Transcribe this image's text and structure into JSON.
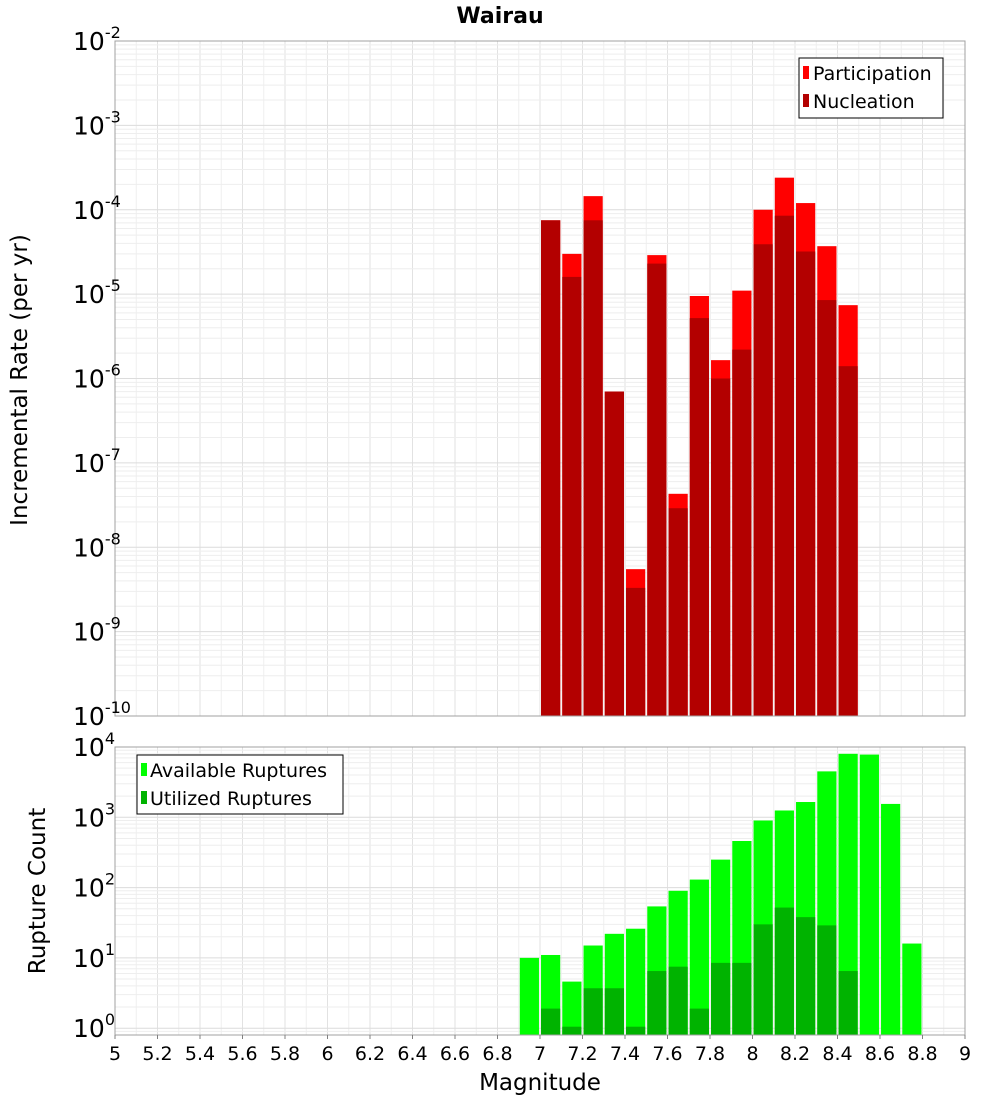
{
  "title": "Wairau",
  "chart_data": [
    {
      "type": "bar",
      "scale": "log",
      "ylabel": "Incremental Rate (per yr)",
      "ylim": [
        1e-10,
        0.01
      ],
      "y_ticks": [
        {
          "base": "10",
          "exp": "-10",
          "value": 1e-10
        },
        {
          "base": "10",
          "exp": "-9",
          "value": 1e-09
        },
        {
          "base": "10",
          "exp": "-8",
          "value": 1e-08
        },
        {
          "base": "10",
          "exp": "-7",
          "value": 1e-07
        },
        {
          "base": "10",
          "exp": "-6",
          "value": 1e-06
        },
        {
          "base": "10",
          "exp": "-5",
          "value": 1e-05
        },
        {
          "base": "10",
          "exp": "-4",
          "value": 0.0001
        },
        {
          "base": "10",
          "exp": "-3",
          "value": 0.001
        },
        {
          "base": "10",
          "exp": "-2",
          "value": 0.01
        }
      ],
      "grid": true,
      "legend_position": "top-right",
      "x": [
        7.05,
        7.15,
        7.25,
        7.35,
        7.45,
        7.55,
        7.65,
        7.75,
        7.85,
        7.95,
        8.05,
        8.15,
        8.25,
        8.35,
        8.45
      ],
      "series": [
        {
          "name": "Participation",
          "color": "#ff0000",
          "values": [
            7.5e-05,
            3e-05,
            0.000145,
            7e-07,
            5.5e-09,
            2.9e-05,
            4.3e-08,
            9.5e-06,
            1.65e-06,
            1.1e-05,
            0.0001,
            0.00024,
            0.00012,
            3.7e-05,
            7.4e-06
          ]
        },
        {
          "name": "Nucleation",
          "color": "#b30000",
          "values": [
            7.5e-05,
            1.6e-05,
            7.5e-05,
            7e-07,
            3.3e-09,
            2.3e-05,
            2.9e-08,
            5.2e-06,
            1e-06,
            2.2e-06,
            3.9e-05,
            8.5e-05,
            3.2e-05,
            8.5e-06,
            1.4e-06
          ]
        }
      ]
    },
    {
      "type": "bar",
      "scale": "log",
      "ylabel": "Rupture Count",
      "xlabel": "Magnitude",
      "ylim": [
        0.8,
        10000
      ],
      "y_ticks": [
        {
          "base": "10",
          "exp": "0",
          "value": 1
        },
        {
          "base": "10",
          "exp": "1",
          "value": 10
        },
        {
          "base": "10",
          "exp": "2",
          "value": 100
        },
        {
          "base": "10",
          "exp": "3",
          "value": 1000
        },
        {
          "base": "10",
          "exp": "4",
          "value": 10000
        }
      ],
      "grid": true,
      "legend_position": "top-left",
      "x": [
        6.95,
        7.05,
        7.15,
        7.25,
        7.35,
        7.45,
        7.55,
        7.65,
        7.75,
        7.85,
        7.95,
        8.05,
        8.15,
        8.25,
        8.35,
        8.45,
        8.55,
        8.65,
        8.75
      ],
      "series": [
        {
          "name": "Available Ruptures",
          "color": "#00ff00",
          "values": [
            10,
            11,
            4.6,
            15,
            22,
            26,
            54,
            90,
            130,
            250,
            460,
            900,
            1250,
            1650,
            4500,
            8000,
            7800,
            1550,
            16
          ]
        },
        {
          "name": "Utilized Ruptures",
          "color": "#00b300",
          "values": [
            0,
            1.9,
            1.05,
            3.7,
            3.7,
            1.05,
            6.5,
            7.5,
            1.9,
            8.5,
            8.5,
            30,
            52,
            38,
            29,
            6.5,
            0,
            0,
            0
          ]
        }
      ]
    }
  ],
  "x_axis": {
    "xlim": [
      5,
      9
    ],
    "ticks": [
      "5",
      "5.2",
      "5.4",
      "5.6",
      "5.8",
      "6",
      "6.2",
      "6.4",
      "6.6",
      "6.8",
      "7",
      "7.2",
      "7.4",
      "7.6",
      "7.8",
      "8",
      "8.2",
      "8.4",
      "8.6",
      "8.8",
      "9"
    ]
  }
}
